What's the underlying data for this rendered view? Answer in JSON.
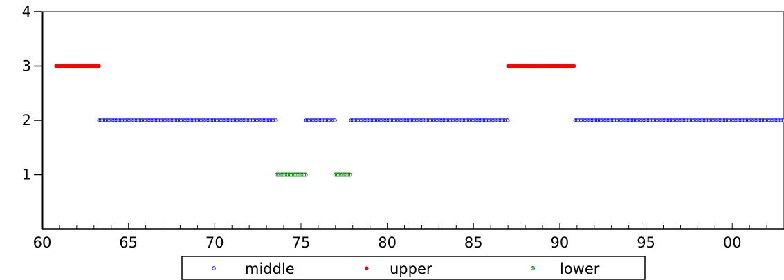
{
  "chart_data": {
    "type": "scatter",
    "title": "",
    "xlabel": "",
    "ylabel": "",
    "xlim": [
      1960,
      2003
    ],
    "ylim": [
      0,
      4
    ],
    "x_ticks": [
      {
        "value": 1960,
        "label": "60"
      },
      {
        "value": 1965,
        "label": "65"
      },
      {
        "value": 1970,
        "label": "70"
      },
      {
        "value": 1975,
        "label": "75"
      },
      {
        "value": 1980,
        "label": "80"
      },
      {
        "value": 1985,
        "label": "85"
      },
      {
        "value": 1990,
        "label": "90"
      },
      {
        "value": 1995,
        "label": "95"
      },
      {
        "value": 2000,
        "label": "00"
      }
    ],
    "y_ticks": [
      {
        "value": 1,
        "label": "1"
      },
      {
        "value": 2,
        "label": "2"
      },
      {
        "value": 3,
        "label": "3"
      },
      {
        "value": 4,
        "label": "4"
      }
    ],
    "grid": false,
    "legend_position": "bottom",
    "series": [
      {
        "name": "middle",
        "color": "#0000ff",
        "marker": "open-circle",
        "y": 2,
        "segments": [
          [
            1963.3,
            1973.6
          ],
          [
            1975.3,
            1977.0
          ],
          [
            1977.9,
            1987.0
          ],
          [
            1990.9,
            2003.0
          ]
        ]
      },
      {
        "name": "upper",
        "color": "#ff0000",
        "marker": "filled-circle",
        "y": 3,
        "segments": [
          [
            1960.8,
            1963.3
          ],
          [
            1987.0,
            1990.9
          ]
        ]
      },
      {
        "name": "lower",
        "color": "#008000",
        "marker": "half-circle",
        "y": 1,
        "segments": [
          [
            1973.6,
            1975.3
          ],
          [
            1977.0,
            1977.9
          ]
        ]
      }
    ]
  }
}
